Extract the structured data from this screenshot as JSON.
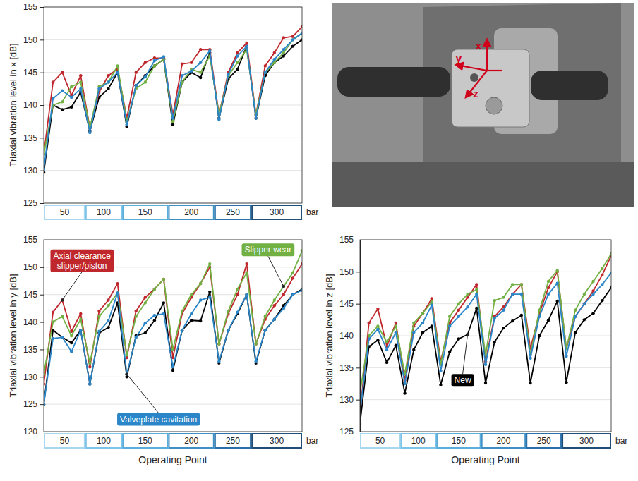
{
  "chart_data": [
    {
      "type": "line",
      "y_label": "Triaxial vibration level in x [dB]",
      "x": [
        0,
        1,
        2,
        3,
        4,
        5,
        6,
        7,
        8,
        9,
        10,
        11,
        12,
        13,
        14,
        15,
        16,
        17,
        18,
        19,
        20,
        21,
        22,
        23,
        24,
        25,
        26,
        27,
        28
      ],
      "xlim": [
        0,
        28
      ],
      "ylim": [
        125,
        155
      ],
      "yticks": [
        125,
        130,
        135,
        140,
        145,
        150,
        155
      ],
      "grid": true,
      "marker": "circle",
      "tick_labels": "y",
      "groups": [
        {
          "label": "50",
          "count": 5,
          "color": "#a8d8f0"
        },
        {
          "label": "100",
          "count": 4,
          "color": "#7ec3e8"
        },
        {
          "label": "150",
          "count": 5,
          "color": "#5aaedc"
        },
        {
          "label": "200",
          "count": 5,
          "color": "#3d8fc4"
        },
        {
          "label": "250",
          "count": 4,
          "color": "#2a6fa8"
        },
        {
          "label": "300",
          "count": 6,
          "color": "#1f4e79"
        }
      ],
      "group_unit": "bar",
      "series": [
        {
          "color": "#000000",
          "values": [
            129.7,
            140.0,
            139.3,
            139.7,
            142.0,
            136.0,
            141.2,
            142.5,
            145.0,
            136.7,
            143.0,
            144.5,
            146.0,
            147.0,
            137.0,
            143.5,
            145.0,
            144.2,
            148.0,
            138.0,
            144.0,
            145.5,
            149.0,
            138.0,
            144.5,
            146.5,
            147.5,
            149.0,
            150.0
          ]
        },
        {
          "color": "#c0272d",
          "values": [
            132.5,
            143.5,
            145.0,
            141.5,
            144.5,
            136.5,
            142.0,
            144.5,
            145.5,
            138.0,
            145.0,
            146.5,
            147.2,
            147.2,
            138.5,
            146.3,
            146.5,
            148.5,
            148.5,
            138.5,
            145.0,
            148.0,
            149.5,
            138.5,
            146.0,
            148.0,
            150.3,
            150.5,
            152.0
          ]
        },
        {
          "color": "#72b043",
          "values": [
            132.5,
            140.0,
            140.5,
            142.8,
            143.5,
            136.5,
            142.8,
            143.5,
            146.0,
            137.5,
            142.5,
            143.5,
            146.0,
            147.0,
            137.5,
            143.5,
            145.5,
            145.0,
            147.5,
            138.5,
            144.5,
            146.5,
            148.5,
            138.5,
            145.0,
            146.5,
            148.0,
            150.0,
            151.0
          ]
        },
        {
          "color": "#2a86c8",
          "values": [
            130.2,
            141.0,
            142.2,
            141.2,
            142.5,
            135.8,
            142.5,
            143.5,
            145.0,
            137.0,
            143.0,
            144.3,
            146.8,
            147.4,
            138.0,
            144.5,
            145.2,
            146.5,
            148.3,
            137.8,
            144.7,
            147.5,
            149.0,
            138.0,
            145.0,
            147.0,
            148.5,
            150.0,
            151.0
          ]
        }
      ],
      "annotations": []
    },
    {
      "type": "line",
      "y_label": "Triaxial vibration level in y [dB]",
      "x_label": "Operating Point",
      "x": [
        0,
        1,
        2,
        3,
        4,
        5,
        6,
        7,
        8,
        9,
        10,
        11,
        12,
        13,
        14,
        15,
        16,
        17,
        18,
        19,
        20,
        21,
        22,
        23,
        24,
        25,
        26,
        27,
        28
      ],
      "xlim": [
        0,
        28
      ],
      "ylim": [
        120,
        155
      ],
      "yticks": [
        120,
        125,
        130,
        135,
        140,
        145,
        150,
        155
      ],
      "grid": true,
      "marker": "circle",
      "tick_labels": "y",
      "groups": [
        {
          "label": "50",
          "count": 5,
          "color": "#a8d8f0"
        },
        {
          "label": "100",
          "count": 4,
          "color": "#7ec3e8"
        },
        {
          "label": "150",
          "count": 5,
          "color": "#5aaedc"
        },
        {
          "label": "200",
          "count": 5,
          "color": "#3d8fc4"
        },
        {
          "label": "250",
          "count": 4,
          "color": "#2a6fa8"
        },
        {
          "label": "300",
          "count": 6,
          "color": "#1f4e79"
        }
      ],
      "group_unit": "bar",
      "series": [
        {
          "color": "#000000",
          "values": [
            125.0,
            138.5,
            137.2,
            136.2,
            138.5,
            128.7,
            138.0,
            139.0,
            143.5,
            130.0,
            137.5,
            138.0,
            140.3,
            143.5,
            131.2,
            138.5,
            140.3,
            140.2,
            145.5,
            132.5,
            138.5,
            141.5,
            145.0,
            132.5,
            138.5,
            140.5,
            143.0,
            145.0,
            146.0
          ]
        },
        {
          "color": "#c0272d",
          "values": [
            128.7,
            141.8,
            144.0,
            138.3,
            141.5,
            131.8,
            142.0,
            144.0,
            147.0,
            133.5,
            142.0,
            144.5,
            146.0,
            147.8,
            133.5,
            141.5,
            144.5,
            147.0,
            150.0,
            136.0,
            141.5,
            145.0,
            150.6,
            136.0,
            140.5,
            143.0,
            145.0,
            148.0,
            150.6
          ]
        },
        {
          "color": "#72b043",
          "values": [
            130.5,
            140.0,
            141.0,
            137.5,
            140.5,
            132.5,
            141.0,
            143.0,
            145.3,
            134.0,
            141.0,
            143.5,
            146.0,
            147.8,
            135.0,
            142.0,
            145.0,
            147.0,
            150.6,
            136.0,
            142.0,
            146.0,
            149.0,
            136.0,
            141.0,
            144.0,
            146.5,
            149.0,
            153.0
          ]
        },
        {
          "color": "#2a86c8",
          "values": [
            125.0,
            137.0,
            137.2,
            134.6,
            138.5,
            128.7,
            138.3,
            140.2,
            145.3,
            130.5,
            137.2,
            139.8,
            141.2,
            141.5,
            131.8,
            138.5,
            141.5,
            144.0,
            144.5,
            132.8,
            138.5,
            141.8,
            145.0,
            132.8,
            138.5,
            140.5,
            142.5,
            145.0,
            145.8
          ]
        }
      ],
      "annotations": [
        {
          "text": "Axial clearance\nslipper/piston",
          "series": 1,
          "point": 2
        },
        {
          "text": "Slipper wear",
          "series": 2,
          "point": 26
        },
        {
          "text": "Valveplate cavitation",
          "series": 3,
          "point": 9
        }
      ]
    },
    {
      "type": "line",
      "y_label": "Triaxial vibration level in z [dB]",
      "x_label": "Operating Point",
      "x": [
        0,
        1,
        2,
        3,
        4,
        5,
        6,
        7,
        8,
        9,
        10,
        11,
        12,
        13,
        14,
        15,
        16,
        17,
        18,
        19,
        20,
        21,
        22,
        23,
        24,
        25,
        26,
        27,
        28
      ],
      "xlim": [
        0,
        28
      ],
      "ylim": [
        125,
        155
      ],
      "yticks": [
        125,
        130,
        135,
        140,
        145,
        150,
        155
      ],
      "grid": true,
      "marker": "circle",
      "tick_labels": "y",
      "groups": [
        {
          "label": "50",
          "count": 5,
          "color": "#a8d8f0"
        },
        {
          "label": "100",
          "count": 4,
          "color": "#7ec3e8"
        },
        {
          "label": "150",
          "count": 5,
          "color": "#5aaedc"
        },
        {
          "label": "200",
          "count": 5,
          "color": "#3d8fc4"
        },
        {
          "label": "250",
          "count": 4,
          "color": "#2a6fa8"
        },
        {
          "label": "300",
          "count": 6,
          "color": "#1f4e79"
        }
      ],
      "group_unit": "bar",
      "series": [
        {
          "color": "#000000",
          "values": [
            126.2,
            138.3,
            139.3,
            135.8,
            138.5,
            131.0,
            137.8,
            140.5,
            141.5,
            132.3,
            137.5,
            139.5,
            140.2,
            144.3,
            132.6,
            139.0,
            141.2,
            142.3,
            143.2,
            132.6,
            140.0,
            142.4,
            145.4,
            132.7,
            140.5,
            142.5,
            143.5,
            145.5,
            147.5
          ]
        },
        {
          "color": "#c0272d",
          "values": [
            127.8,
            142.0,
            144.2,
            138.3,
            142.0,
            133.0,
            141.5,
            143.5,
            145.8,
            136.0,
            142.0,
            144.0,
            146.0,
            148.0,
            136.0,
            143.0,
            144.5,
            146.5,
            148.0,
            138.0,
            143.5,
            147.5,
            150.0,
            138.0,
            143.0,
            145.0,
            147.0,
            149.5,
            152.5
          ]
        },
        {
          "color": "#72b043",
          "values": [
            131.0,
            140.0,
            141.5,
            139.0,
            141.5,
            134.0,
            142.0,
            143.5,
            145.3,
            135.5,
            143.0,
            145.0,
            146.5,
            147.2,
            137.0,
            145.5,
            146.0,
            148.0,
            148.0,
            137.0,
            144.0,
            148.5,
            150.2,
            138.0,
            144.0,
            146.5,
            148.5,
            150.5,
            152.8
          ]
        },
        {
          "color": "#2a86c8",
          "values": [
            128.0,
            139.5,
            141.0,
            137.8,
            140.5,
            132.5,
            140.5,
            142.0,
            144.8,
            134.5,
            141.5,
            143.0,
            144.5,
            146.5,
            135.5,
            142.7,
            144.0,
            146.5,
            146.5,
            136.5,
            143.0,
            146.5,
            148.2,
            136.8,
            143.0,
            145.0,
            146.5,
            148.0,
            149.8
          ]
        }
      ],
      "annotations": [
        {
          "text": "New",
          "series": 0,
          "point": 12
        }
      ]
    }
  ],
  "photo": {
    "labels": [
      "x",
      "y",
      "z"
    ]
  }
}
